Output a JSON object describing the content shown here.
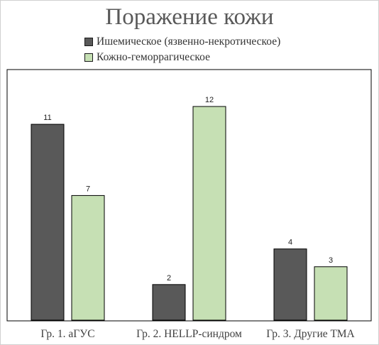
{
  "chart_data": {
    "type": "bar",
    "title": "Поражение кожи",
    "categories": [
      "Гр. 1. аГУС",
      "Гр. 2. HELLP-синдром",
      "Гр. 3. Другие ТМА"
    ],
    "series": [
      {
        "name": "Ишемическое (язвенно-некротическое)",
        "values": [
          11,
          2,
          4
        ],
        "color": "#595959"
      },
      {
        "name": "Кожно-геморрагическое",
        "values": [
          7,
          12,
          3
        ],
        "color": "#c6e0b4"
      }
    ],
    "ylim": [
      0,
      12
    ],
    "grid": false,
    "legend_position": "top"
  }
}
